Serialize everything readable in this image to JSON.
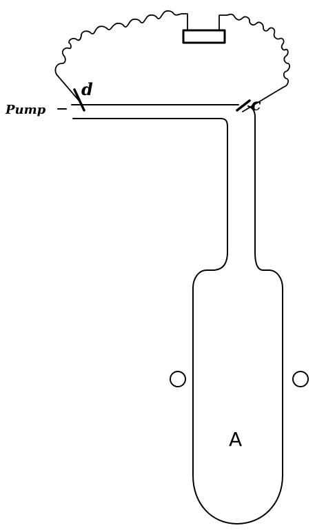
{
  "labels": {
    "pump": "Pump",
    "d": "d",
    "c": "c",
    "a": "A"
  },
  "colors": {
    "ink": "#000000",
    "background": "#ffffff"
  }
}
